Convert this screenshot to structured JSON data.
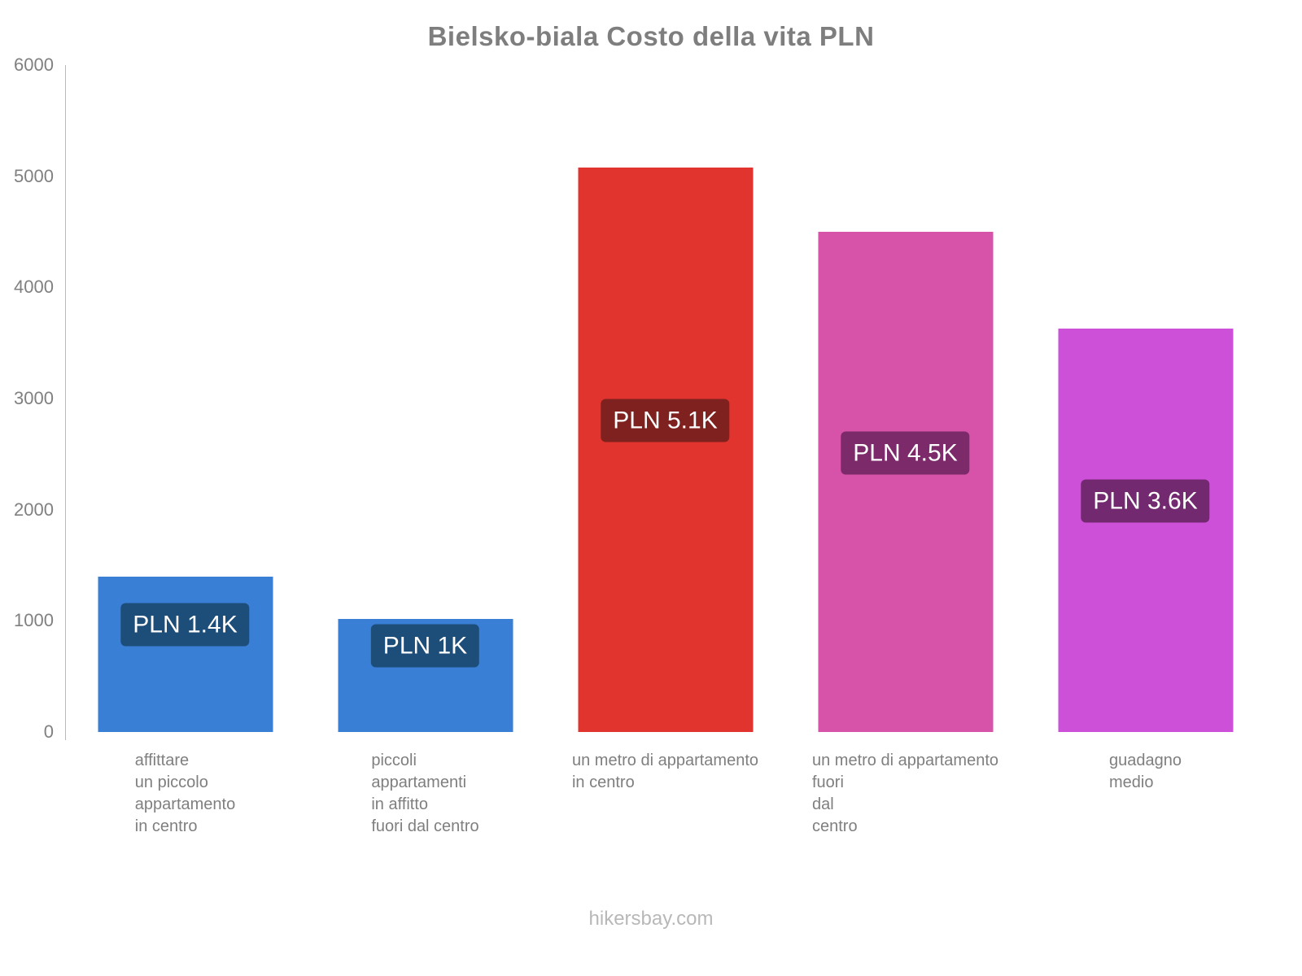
{
  "title": "Bielsko-biala Costo della vita PLN",
  "footer": "hikersbay.com",
  "axis": {
    "text_color": "#808080",
    "line_color": "#b9b9b9"
  },
  "chart_data": {
    "type": "bar",
    "title": "Bielsko-biala Costo della vita PLN",
    "xlabel": "",
    "ylabel": "",
    "ylim": [
      0,
      6000
    ],
    "yticks": [
      0,
      1000,
      2000,
      3000,
      4000,
      5000,
      6000
    ],
    "grid": false,
    "legend": false,
    "currency": "PLN",
    "categories": [
      "affittare un piccolo appartamento in centro",
      "piccoli appartamenti in affitto fuori dal centro",
      "un metro di appartamento in centro",
      "un metro di appartamento fuori dal centro",
      "guadagno medio"
    ],
    "category_lines": [
      [
        "affittare",
        "un piccolo",
        "appartamento",
        "in centro"
      ],
      [
        "piccoli",
        "appartamenti",
        "in affitto",
        "fuori dal centro"
      ],
      [
        "un metro di appartamento",
        "in centro"
      ],
      [
        "un metro di appartamento",
        "fuori",
        "dal",
        "centro"
      ],
      [
        "guadagno",
        "medio"
      ]
    ],
    "values": [
      1400,
      1020,
      5080,
      4500,
      3630
    ],
    "value_labels": [
      "PLN 1.4K",
      "PLN 1K",
      "PLN 5.1K",
      "PLN 4.5K",
      "PLN 3.6K"
    ],
    "bar_colors": [
      "#3a7fd6",
      "#3a7fd6",
      "#e1342f",
      "#d653a9",
      "#cd50d8"
    ],
    "badge_colors": [
      "#1d4e79",
      "#1d4e79",
      "#7f211e",
      "#7c2a69",
      "#732970"
    ]
  }
}
